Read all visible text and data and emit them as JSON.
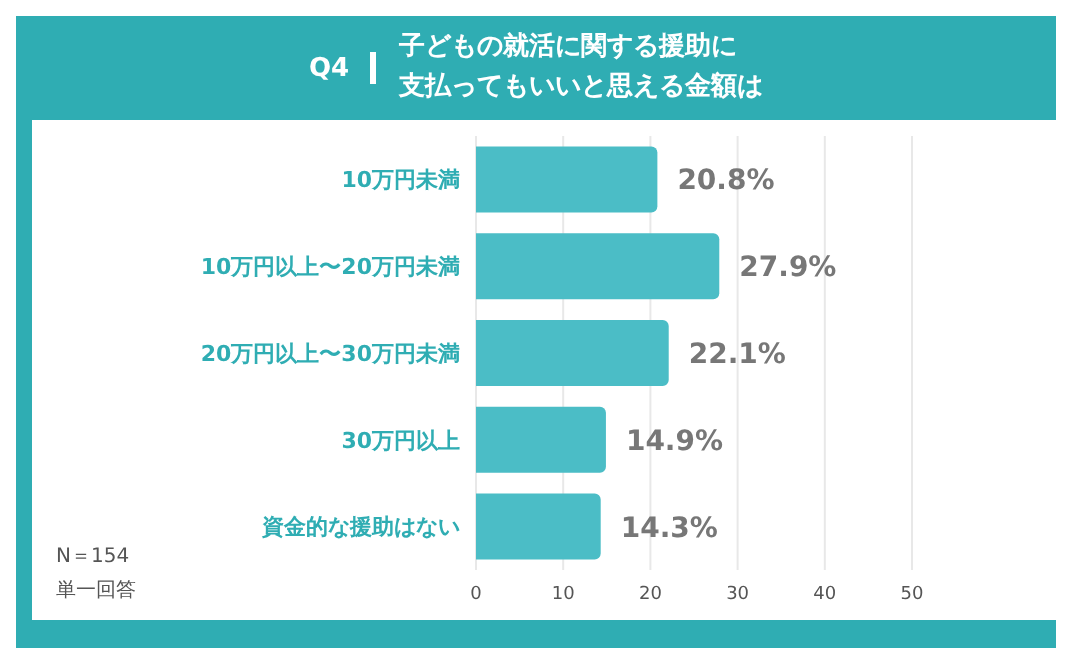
{
  "chart_data": {
    "type": "bar",
    "orientation": "horizontal",
    "title": "Q4",
    "subtitle": "子どもの就活に関する援助に支払ってもいいと思える金額は",
    "categories": [
      "10万円未満",
      "10万円以上〜20万円未満",
      "20万円以上〜30万円未満",
      "30万円以上",
      "資金的な援助はない"
    ],
    "values": [
      20.8,
      27.9,
      22.1,
      14.9,
      14.3
    ],
    "value_labels": [
      "20.8%",
      "27.9%",
      "22.1%",
      "14.9%",
      "14.3%"
    ],
    "color": "#4bbdc6",
    "xlim": [
      0,
      50
    ],
    "xticks": [
      0,
      10,
      20,
      30,
      40,
      50
    ],
    "grid": "x",
    "annotations": [
      "N＝154",
      "単一回答"
    ]
  }
}
